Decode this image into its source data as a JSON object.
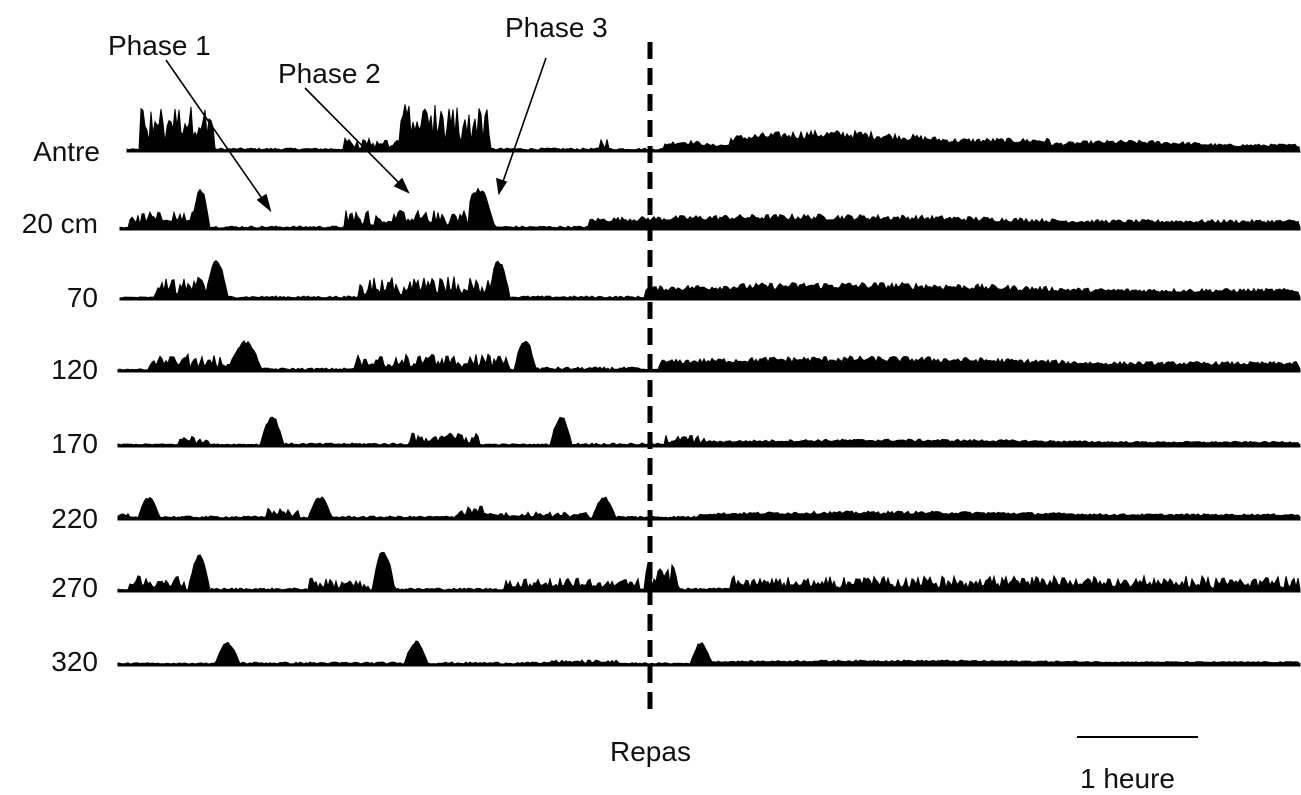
{
  "phase_labels": {
    "phase1": "Phase 1",
    "phase2": "Phase 2",
    "phase3": "Phase 3"
  },
  "row_labels": [
    "Antre",
    "20 cm",
    "70",
    "120",
    "170",
    "220",
    "270",
    "320"
  ],
  "meal_label": "Repas",
  "scale_label": "1 heure",
  "colors": {
    "trace": "#000000",
    "text": "#111111",
    "background": "#ffffff"
  }
}
